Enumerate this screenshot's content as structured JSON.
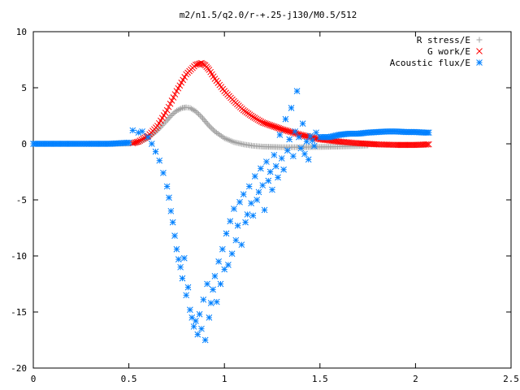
{
  "chart_data": {
    "type": "scatter",
    "title": "m2/n1.5/q2.0/r-+.25-j130/M0.5/512",
    "xlabel": "",
    "ylabel": "",
    "xlim": [
      0,
      2.5
    ],
    "ylim": [
      -20,
      10
    ],
    "xticks": [
      0,
      0.5,
      1,
      1.5,
      2,
      2.5
    ],
    "yticks": [
      -20,
      -15,
      -10,
      -5,
      0,
      5,
      10
    ],
    "x_tick_labels": [
      "0",
      "0.5",
      "1",
      "1.5",
      "2",
      "2.5"
    ],
    "y_tick_labels": [
      "-20",
      "-15",
      "-10",
      "-5",
      "0",
      "5",
      "10"
    ],
    "grid": false,
    "legend_position": "top-right",
    "series": [
      {
        "name": "R stress/E",
        "marker": "+",
        "color": "#a0a0a0",
        "x": [
          0,
          0.1,
          0.2,
          0.3,
          0.4,
          0.5,
          0.55,
          0.6,
          0.65,
          0.7,
          0.72,
          0.75,
          0.78,
          0.8,
          0.82,
          0.85,
          0.88,
          0.9,
          0.92,
          0.95,
          1.0,
          1.05,
          1.1,
          1.15,
          1.2,
          1.3,
          1.4,
          1.5,
          1.6,
          1.7,
          1.75
        ],
        "y": [
          0,
          0,
          0,
          0,
          0,
          0.02,
          0.15,
          0.5,
          1.2,
          2.1,
          2.5,
          2.95,
          3.2,
          3.25,
          3.2,
          2.9,
          2.4,
          2.0,
          1.6,
          1.1,
          0.5,
          0.15,
          -0.05,
          -0.18,
          -0.25,
          -0.3,
          -0.3,
          -0.28,
          -0.25,
          -0.2,
          -0.15
        ]
      },
      {
        "name": "G work/E",
        "marker": "x",
        "color": "#ff0000",
        "x": [
          0.52,
          0.55,
          0.6,
          0.65,
          0.7,
          0.75,
          0.8,
          0.85,
          0.88,
          0.9,
          0.92,
          0.95,
          1.0,
          1.05,
          1.1,
          1.15,
          1.2,
          1.3,
          1.4,
          1.5,
          1.6,
          1.7,
          1.8,
          1.9,
          2.0,
          2.07
        ],
        "y": [
          0.05,
          0.2,
          0.7,
          1.6,
          3.0,
          4.7,
          6.2,
          7.05,
          7.2,
          7.0,
          6.6,
          5.8,
          4.7,
          3.8,
          3.0,
          2.4,
          1.9,
          1.3,
          0.8,
          0.4,
          0.2,
          0.05,
          -0.05,
          -0.1,
          -0.1,
          -0.05
        ]
      },
      {
        "name": "Acoustic flux/E",
        "marker": "*",
        "color": "#0080ff",
        "x": [
          0,
          0.1,
          0.2,
          0.3,
          0.4,
          0.5,
          0.52,
          0.55,
          0.57,
          0.6,
          0.62,
          0.64,
          0.66,
          0.68,
          0.7,
          0.71,
          0.72,
          0.73,
          0.74,
          0.75,
          0.76,
          0.77,
          0.78,
          0.79,
          0.8,
          0.81,
          0.82,
          0.83,
          0.84,
          0.85,
          0.86,
          0.87,
          0.88,
          0.89,
          0.9,
          0.91,
          0.92,
          0.93,
          0.94,
          0.95,
          0.96,
          0.97,
          0.98,
          0.99,
          1.0,
          1.01,
          1.02,
          1.03,
          1.04,
          1.05,
          1.06,
          1.07,
          1.08,
          1.09,
          1.1,
          1.11,
          1.12,
          1.13,
          1.14,
          1.15,
          1.16,
          1.17,
          1.18,
          1.19,
          1.2,
          1.21,
          1.22,
          1.23,
          1.24,
          1.25,
          1.26,
          1.27,
          1.28,
          1.29,
          1.3,
          1.31,
          1.32,
          1.33,
          1.34,
          1.35,
          1.36,
          1.37,
          1.38,
          1.39,
          1.4,
          1.41,
          1.42,
          1.43,
          1.44,
          1.45,
          1.46,
          1.47,
          1.48,
          1.5,
          1.55,
          1.6,
          1.65,
          1.7,
          1.75,
          1.8,
          1.85,
          1.9,
          1.95,
          2.0,
          2.05,
          2.07
        ],
        "y": [
          0,
          0,
          0,
          0,
          0,
          0.1,
          1.2,
          1.0,
          1.1,
          0.6,
          0.0,
          -0.7,
          -1.5,
          -2.6,
          -3.8,
          -4.8,
          -6.0,
          -7.0,
          -8.2,
          -9.4,
          -10.3,
          -11.0,
          -12.0,
          -10.2,
          -13.5,
          -12.8,
          -14.8,
          -15.5,
          -16.3,
          -15.8,
          -17.0,
          -15.2,
          -16.5,
          -13.9,
          -17.5,
          -12.5,
          -15.5,
          -14.2,
          -13.0,
          -11.8,
          -14.1,
          -10.5,
          -12.5,
          -9.4,
          -11.2,
          -8.0,
          -10.8,
          -6.9,
          -9.8,
          -5.8,
          -8.6,
          -7.3,
          -5.2,
          -9.0,
          -4.5,
          -7.0,
          -6.3,
          -3.8,
          -5.3,
          -6.4,
          -2.9,
          -5.0,
          -4.3,
          -2.2,
          -3.7,
          -5.9,
          -1.6,
          -3.3,
          -2.5,
          -4.1,
          -1.0,
          -2.0,
          -3.0,
          0.8,
          -1.3,
          -2.3,
          2.2,
          -0.6,
          0.4,
          3.2,
          -1.1,
          1.1,
          4.7,
          0.6,
          -0.4,
          1.8,
          -0.9,
          0.2,
          -1.4,
          0.7,
          0.3,
          -0.2,
          1.0,
          0.6,
          0.6,
          0.8,
          0.9,
          0.9,
          1.0,
          1.05,
          1.1,
          1.1,
          1.05,
          1.05,
          1.0,
          1.0
        ]
      }
    ]
  }
}
